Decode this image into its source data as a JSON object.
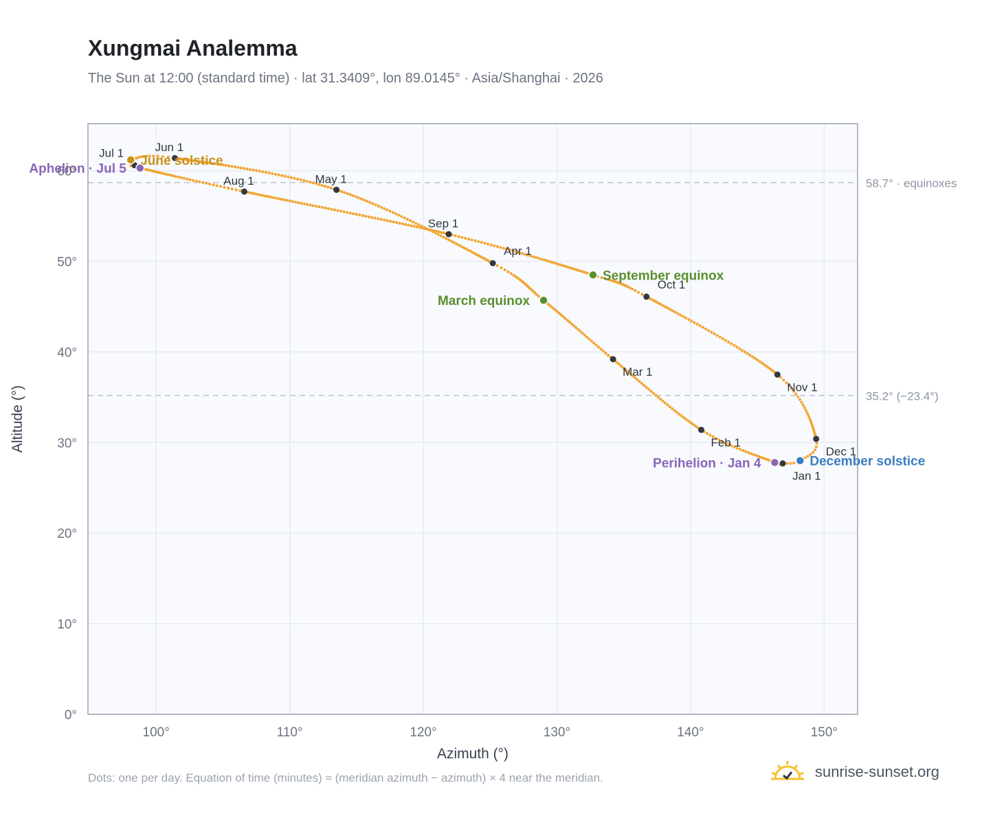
{
  "title": "Xungmai Analemma",
  "subtitle": "The Sun at 12:00 (standard time) · lat 31.3409°, lon 89.0145° · Asia/Shanghai · 2026",
  "footnote": "Dots: one per day. Equation of time (minutes) ≈ (meridian azimuth − azimuth) × 4 near the meridian.",
  "brand": "sunrise-sunset.org",
  "colors": {
    "curve": "#f2a533",
    "month_dot": "#333842",
    "solstice_june": "#c9901a",
    "solstice_december": "#3a7dbf",
    "equinox": "#5a8f2e",
    "apsis": "#8b64b8",
    "plot_bg": "#f8fafd",
    "grid": "#e6ebf1",
    "frame": "#9aa3b2",
    "ref_line": "#b9c1cc"
  },
  "chart_data": {
    "type": "scatter",
    "xlabel": "Azimuth (°)",
    "ylabel": "Altitude (°)",
    "xlim": [
      94.9,
      152.5
    ],
    "ylim": [
      0,
      65.2
    ],
    "xticks": [
      100,
      110,
      120,
      130,
      140,
      150
    ],
    "xtick_labels": [
      "100°",
      "110°",
      "120°",
      "130°",
      "140°",
      "150°"
    ],
    "yticks": [
      0,
      10,
      20,
      30,
      40,
      50,
      60
    ],
    "ytick_labels": [
      "0°",
      "10°",
      "20°",
      "30°",
      "40°",
      "50°",
      "60°"
    ],
    "grid": true,
    "reference_lines": [
      {
        "y": 58.7,
        "label": "58.7° · equinoxes"
      },
      {
        "y": 35.2,
        "label": "35.2° (−23.4°)"
      }
    ],
    "path_anchors": [
      {
        "date": "Jan 1",
        "az": 146.9,
        "alt": 27.7
      },
      {
        "date": "Jan 4",
        "az": 146.3,
        "alt": 27.8
      },
      {
        "date": "Feb 1",
        "az": 140.8,
        "alt": 31.4
      },
      {
        "date": "Mar 1",
        "az": 134.2,
        "alt": 39.2
      },
      {
        "date": "Mar 20",
        "az": 129.0,
        "alt": 45.7
      },
      {
        "date": "Apr 1",
        "az": 125.2,
        "alt": 49.8
      },
      {
        "date": "May 1",
        "az": 113.5,
        "alt": 57.9
      },
      {
        "date": "Jun 1",
        "az": 101.4,
        "alt": 61.4
      },
      {
        "date": "Jun 21",
        "az": 98.1,
        "alt": 61.2
      },
      {
        "date": "Jul 1",
        "az": 98.4,
        "alt": 60.6
      },
      {
        "date": "Jul 5",
        "az": 98.8,
        "alt": 60.3
      },
      {
        "date": "Aug 1",
        "az": 106.6,
        "alt": 57.7
      },
      {
        "date": "Sep 1",
        "az": 121.9,
        "alt": 53.0
      },
      {
        "date": "Sep 23",
        "az": 132.7,
        "alt": 48.5
      },
      {
        "date": "Oct 1",
        "az": 136.7,
        "alt": 46.1
      },
      {
        "date": "Nov 1",
        "az": 146.5,
        "alt": 37.5
      },
      {
        "date": "Dec 1",
        "az": 149.4,
        "alt": 30.4
      },
      {
        "date": "Dec 21",
        "az": 148.2,
        "alt": 28.0
      },
      {
        "date": "Jan 1",
        "az": 146.9,
        "alt": 27.7
      }
    ],
    "month_points": [
      {
        "label": "Jan 1",
        "az": 146.9,
        "alt": 27.7,
        "pos": "below-right"
      },
      {
        "label": "Feb 1",
        "az": 140.8,
        "alt": 31.4,
        "pos": "below-right"
      },
      {
        "label": "Mar 1",
        "az": 134.2,
        "alt": 39.2,
        "pos": "below-right"
      },
      {
        "label": "Apr 1",
        "az": 125.2,
        "alt": 49.8,
        "pos": "above-right"
      },
      {
        "label": "May 1",
        "az": 113.5,
        "alt": 57.9,
        "pos": "above-left"
      },
      {
        "label": "Jun 1",
        "az": 101.4,
        "alt": 61.4,
        "pos": "above-left"
      },
      {
        "label": "Jul 1",
        "az": 98.4,
        "alt": 60.6,
        "pos": "above-left"
      },
      {
        "label": "Aug 1",
        "az": 106.6,
        "alt": 57.7,
        "pos": "above-left"
      },
      {
        "label": "Sep 1",
        "az": 121.9,
        "alt": 53.0,
        "pos": "above-left"
      },
      {
        "label": "Oct 1",
        "az": 136.7,
        "alt": 46.1,
        "pos": "above-right"
      },
      {
        "label": "Nov 1",
        "az": 146.5,
        "alt": 37.5,
        "pos": "below-right"
      },
      {
        "label": "Dec 1",
        "az": 149.4,
        "alt": 30.4,
        "pos": "below-right"
      }
    ],
    "events": [
      {
        "label": "June solstice",
        "az": 98.1,
        "alt": 61.2,
        "kind": "solstice_june",
        "side": "right"
      },
      {
        "label": "December solstice",
        "az": 148.2,
        "alt": 28.0,
        "kind": "solstice_december",
        "side": "right"
      },
      {
        "label": "March equinox",
        "az": 129.0,
        "alt": 45.7,
        "kind": "equinox",
        "side": "left"
      },
      {
        "label": "September equinox",
        "az": 132.7,
        "alt": 48.5,
        "kind": "equinox",
        "side": "right"
      },
      {
        "label": "Perihelion · Jan 4",
        "az": 146.3,
        "alt": 27.8,
        "kind": "apsis",
        "side": "left"
      },
      {
        "label": "Aphelion · Jul 5",
        "az": 98.8,
        "alt": 60.3,
        "kind": "apsis",
        "side": "left"
      }
    ]
  }
}
